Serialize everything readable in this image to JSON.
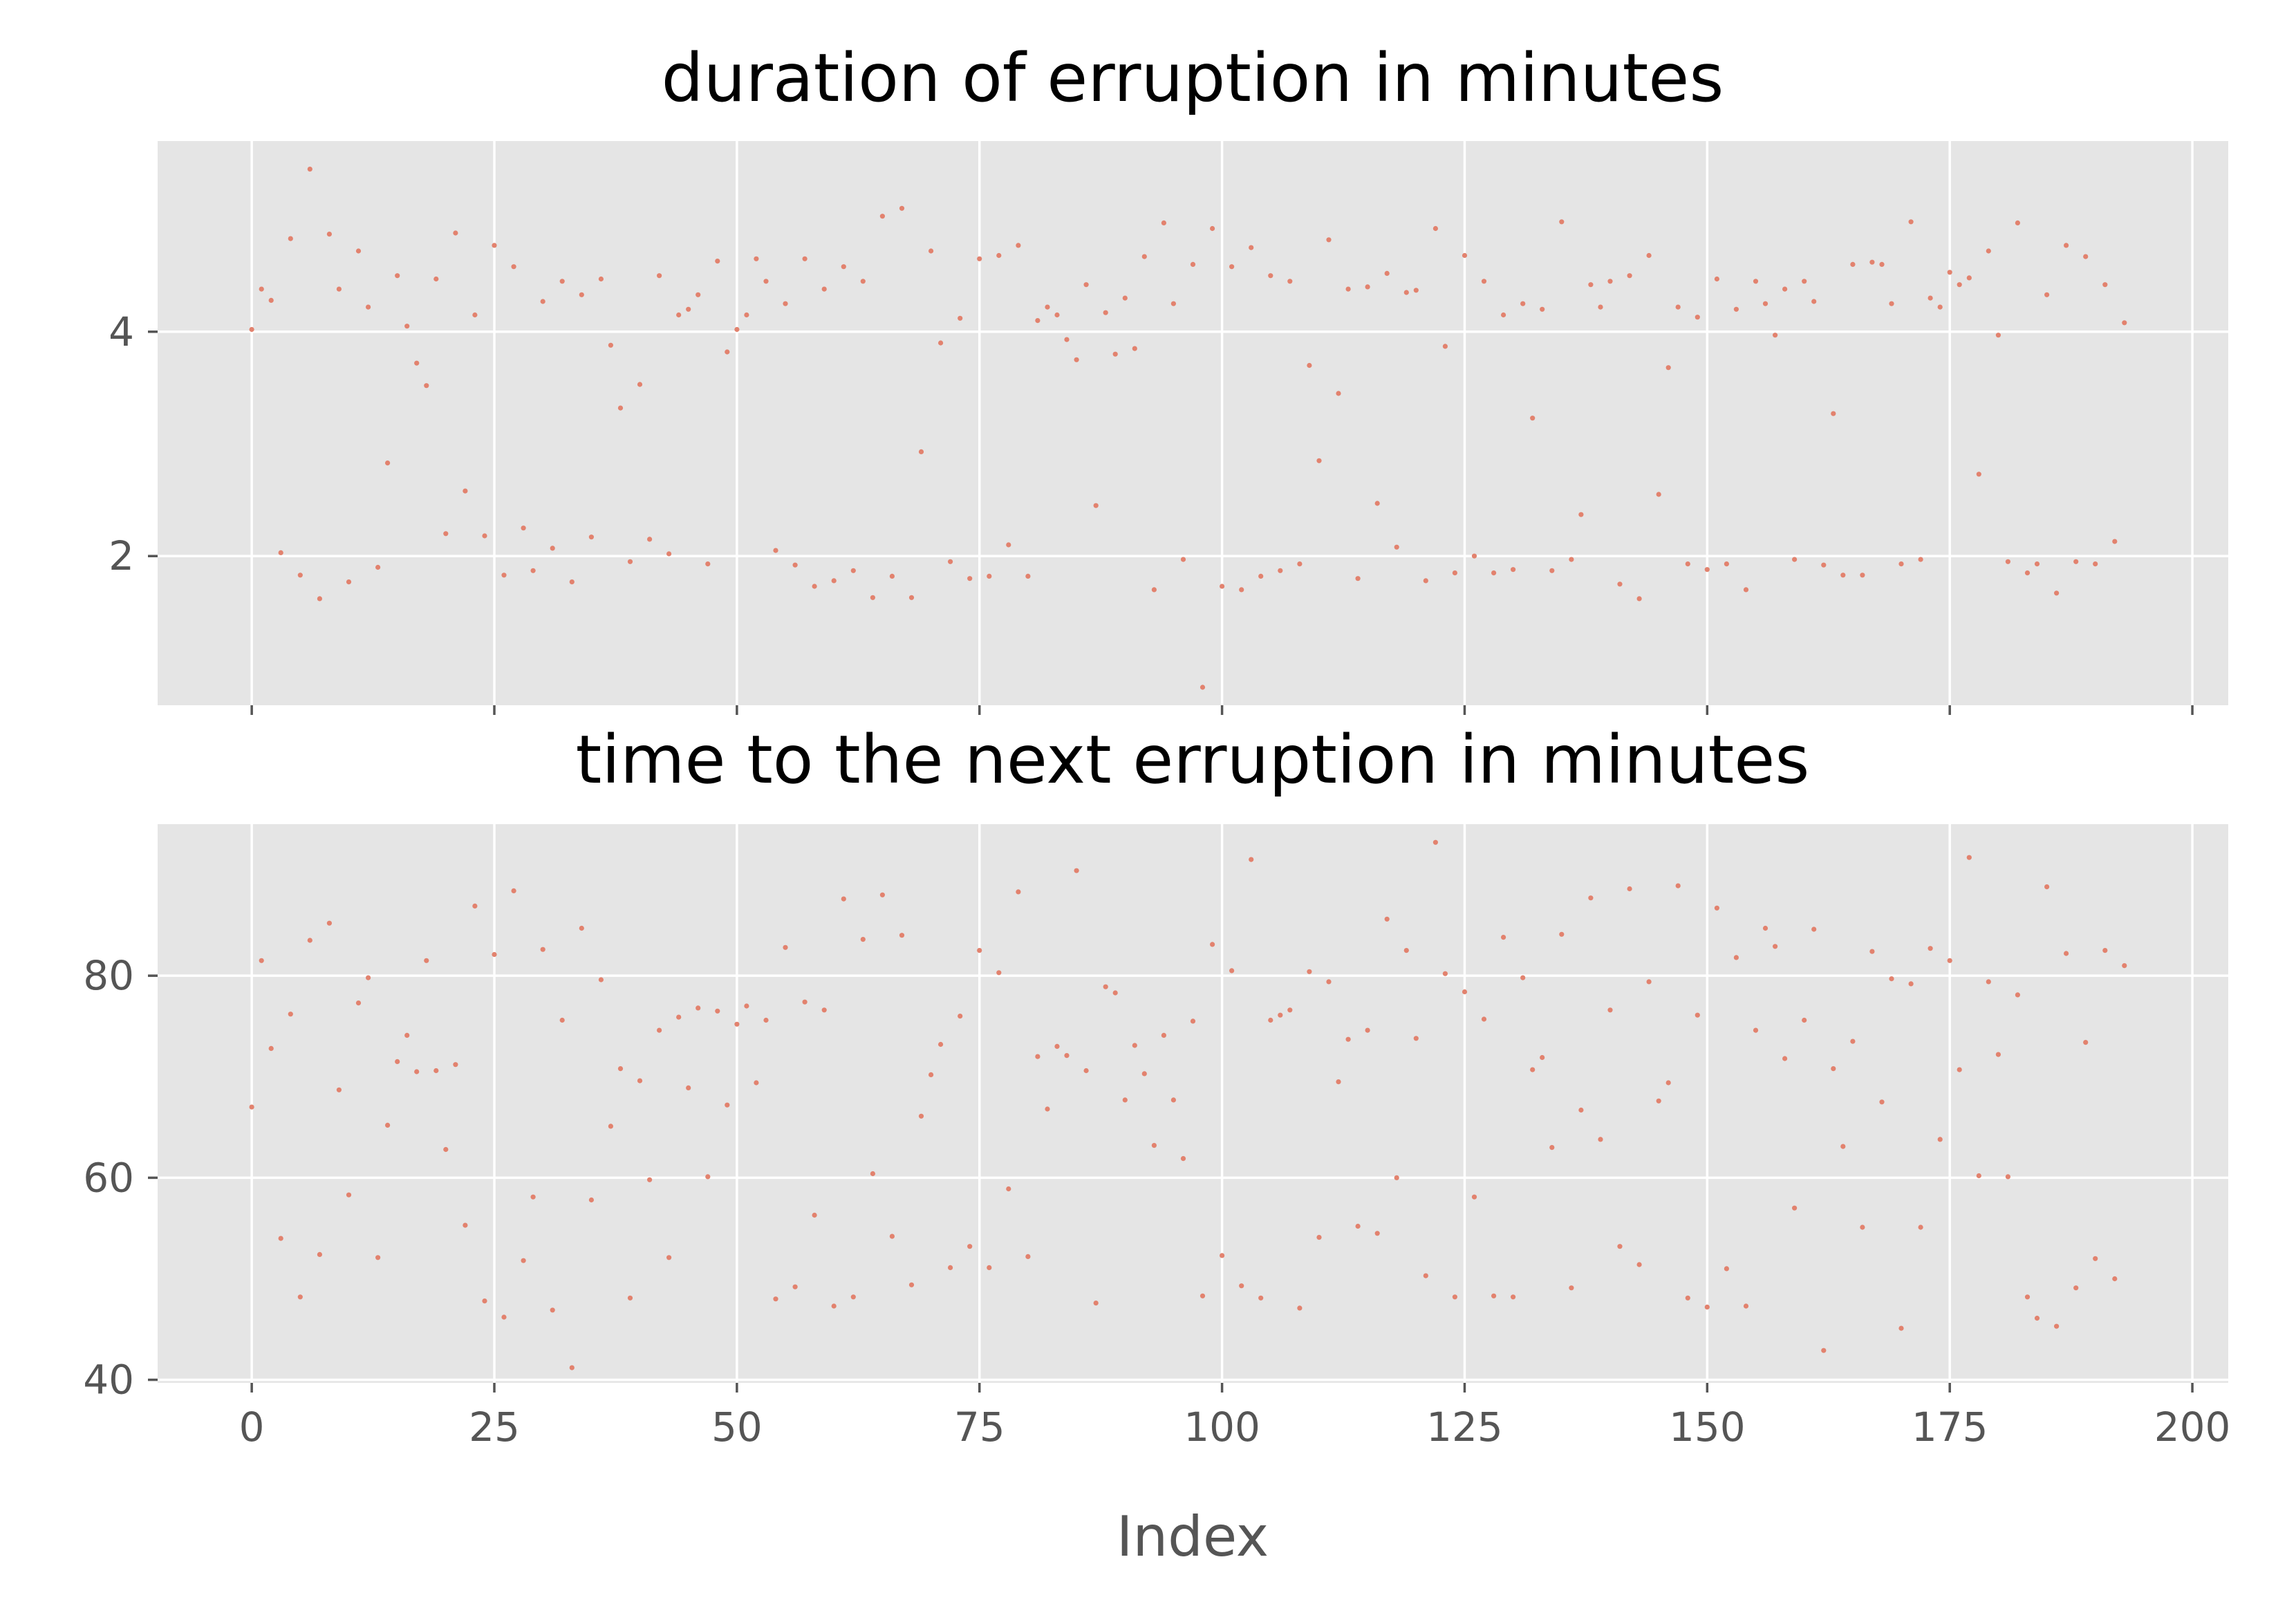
{
  "chart_data": [
    {
      "type": "scatter",
      "title": "duration of erruption in minutes",
      "xlabel": "",
      "ylabel": "",
      "xlim": [
        -9.7,
        203.7
      ],
      "ylim": [
        0.67,
        5.7
      ],
      "xticks": [
        0,
        25,
        50,
        75,
        100,
        125,
        150,
        175,
        200
      ],
      "yticks": [
        2,
        4
      ],
      "ytick_labels": [
        "2",
        "4"
      ],
      "grid": true,
      "marker_color": "#e2826e",
      "series": [
        {
          "x": [
            0,
            1,
            2,
            3,
            4,
            5,
            6,
            7,
            8,
            9,
            10,
            11,
            12,
            13,
            14,
            15,
            16,
            17,
            18,
            19,
            20,
            21,
            22,
            23,
            24,
            25,
            26,
            27,
            28,
            29,
            30,
            31,
            32,
            33,
            34,
            35,
            36,
            37,
            38,
            39,
            40,
            41,
            42,
            43,
            44,
            45,
            46,
            47,
            48,
            49,
            50,
            51,
            52,
            53,
            54,
            55,
            56,
            57,
            58,
            59,
            60,
            61,
            62,
            63,
            64,
            65,
            66,
            67,
            68,
            69,
            70,
            71,
            72,
            73,
            74,
            75,
            76,
            77,
            78,
            79,
            80,
            81,
            82,
            83,
            84,
            85,
            86,
            87,
            88,
            89,
            90,
            91,
            92,
            93,
            94,
            95,
            96,
            97,
            98,
            99,
            100,
            101,
            102,
            103,
            104,
            105,
            106,
            107,
            108,
            109,
            110,
            111,
            112,
            113,
            114,
            115,
            116,
            117,
            118,
            119,
            120,
            121,
            122,
            123,
            124,
            125,
            126,
            127,
            128,
            129,
            130,
            131,
            132,
            133,
            134,
            135,
            136,
            137,
            138,
            139,
            140,
            141,
            142,
            143,
            144,
            145,
            146,
            147,
            148,
            149,
            150,
            151,
            152,
            153,
            154,
            155,
            156,
            157,
            158,
            159,
            160,
            161,
            162,
            163,
            164,
            165,
            166,
            167,
            168,
            169,
            170,
            171,
            172,
            173,
            174,
            175,
            176,
            177,
            178,
            179,
            180,
            181,
            182,
            183,
            184,
            185,
            186,
            187,
            188,
            189,
            190,
            191,
            192,
            193
          ],
          "y": [
            4.02,
            4.38,
            4.28,
            2.03,
            4.83,
            1.83,
            5.45,
            1.62,
            4.87,
            4.38,
            1.77,
            4.72,
            4.22,
            1.9,
            2.83,
            4.5,
            4.05,
            3.72,
            3.52,
            4.47,
            2.2,
            4.88,
            2.58,
            4.15,
            2.18,
            4.77,
            1.83,
            4.58,
            2.25,
            1.87,
            4.27,
            2.07,
            4.45,
            1.77,
            4.33,
            2.17,
            4.47,
            3.88,
            3.32,
            1.95,
            3.53,
            2.15,
            4.5,
            2.02,
            4.15,
            4.2,
            4.33,
            1.93,
            4.63,
            3.82,
            4.02,
            4.15,
            4.65,
            4.45,
            2.05,
            4.25,
            1.92,
            4.65,
            1.73,
            4.38,
            1.78,
            4.58,
            1.87,
            4.45,
            1.63,
            5.03,
            1.82,
            5.1,
            1.63,
            2.93,
            4.72,
            3.9,
            1.95,
            4.12,
            1.8,
            4.65,
            1.82,
            4.68,
            2.1,
            4.77,
            1.82,
            4.1,
            4.22,
            4.15,
            3.93,
            3.75,
            4.42,
            2.45,
            4.17,
            3.8,
            4.3,
            3.85,
            4.67,
            1.7,
            4.97,
            4.25,
            1.97,
            4.6,
            0.83,
            4.92,
            1.73,
            4.58,
            1.7,
            4.75,
            1.82,
            4.5,
            1.87,
            4.45,
            1.93,
            3.7,
            2.85,
            4.82,
            3.45,
            4.38,
            1.8,
            4.4,
            2.47,
            4.52,
            2.08,
            4.35,
            4.37,
            1.78,
            4.92,
            3.87,
            1.85,
            4.68,
            2.0,
            4.45,
            1.85,
            4.15,
            1.88,
            4.25,
            3.23,
            4.2,
            1.87,
            4.98,
            1.97,
            2.37,
            4.42,
            4.22,
            4.45,
            1.75,
            4.5,
            1.62,
            4.68,
            2.55,
            3.68,
            4.22,
            1.93,
            4.13,
            1.88,
            4.47,
            1.93,
            4.2,
            1.7,
            4.45,
            4.25,
            3.97,
            4.38,
            1.97,
            4.45,
            4.27,
            1.92,
            3.27,
            1.83,
            4.6,
            1.83,
            4.62,
            4.6,
            4.25,
            1.93,
            4.98,
            1.97,
            4.3,
            4.22,
            4.53,
            4.42,
            4.48,
            2.73,
            4.72,
            3.97,
            1.95,
            4.97,
            1.85,
            1.93,
            4.33,
            1.67,
            4.77,
            1.95,
            4.67,
            1.93,
            4.42,
            2.13,
            4.08
          ]
        }
      ]
    },
    {
      "type": "scatter",
      "title": "time to the next erruption in minutes",
      "xlabel": "Index",
      "ylabel": "",
      "xlim": [
        -9.7,
        203.7
      ],
      "ylim": [
        39.7,
        95.0
      ],
      "xticks": [
        0,
        25,
        50,
        75,
        100,
        125,
        150,
        175,
        200
      ],
      "xtick_labels": [
        "0",
        "25",
        "50",
        "75",
        "100",
        "125",
        "150",
        "175",
        "200"
      ],
      "yticks": [
        40,
        60,
        80
      ],
      "ytick_labels": [
        "40",
        "60",
        "80"
      ],
      "grid": true,
      "marker_color": "#e2826e",
      "series": [
        {
          "x": [
            0,
            1,
            2,
            3,
            4,
            5,
            6,
            7,
            8,
            9,
            10,
            11,
            12,
            13,
            14,
            15,
            16,
            17,
            18,
            19,
            20,
            21,
            22,
            23,
            24,
            25,
            26,
            27,
            28,
            29,
            30,
            31,
            32,
            33,
            34,
            35,
            36,
            37,
            38,
            39,
            40,
            41,
            42,
            43,
            44,
            45,
            46,
            47,
            48,
            49,
            50,
            51,
            52,
            53,
            54,
            55,
            56,
            57,
            58,
            59,
            60,
            61,
            62,
            63,
            64,
            65,
            66,
            67,
            68,
            69,
            70,
            71,
            72,
            73,
            74,
            75,
            76,
            77,
            78,
            79,
            80,
            81,
            82,
            83,
            84,
            85,
            86,
            87,
            88,
            89,
            90,
            91,
            92,
            93,
            94,
            95,
            96,
            97,
            98,
            99,
            100,
            101,
            102,
            103,
            104,
            105,
            106,
            107,
            108,
            109,
            110,
            111,
            112,
            113,
            114,
            115,
            116,
            117,
            118,
            119,
            120,
            121,
            122,
            123,
            124,
            125,
            126,
            127,
            128,
            129,
            130,
            131,
            132,
            133,
            134,
            135,
            136,
            137,
            138,
            139,
            140,
            141,
            142,
            143,
            144,
            145,
            146,
            147,
            148,
            149,
            150,
            151,
            152,
            153,
            154,
            155,
            156,
            157,
            158,
            159,
            160,
            161,
            162,
            163,
            164,
            165,
            166,
            167,
            168,
            169,
            170,
            171,
            172,
            173,
            174,
            175,
            176,
            177,
            178,
            179,
            180,
            181,
            182,
            183,
            184,
            185,
            186,
            187,
            188,
            189,
            190,
            191,
            192,
            193
          ],
          "y": [
            67,
            81.5,
            72.8,
            54,
            76.2,
            48.2,
            83.5,
            52.4,
            85.2,
            68.7,
            58.3,
            77.3,
            79.8,
            52.1,
            65.2,
            71.5,
            74.1,
            70.5,
            81.5,
            70.6,
            62.8,
            71.2,
            55.3,
            86.9,
            47.8,
            82.1,
            46.2,
            88.4,
            51.8,
            58.1,
            82.6,
            46.9,
            75.6,
            41.2,
            84.7,
            57.8,
            79.6,
            65.1,
            70.8,
            48.1,
            69.6,
            59.8,
            74.6,
            52.1,
            75.9,
            68.9,
            76.8,
            60.1,
            76.5,
            67.2,
            75.2,
            77,
            69.4,
            75.6,
            48,
            82.8,
            49.2,
            77.4,
            56.3,
            76.6,
            47.3,
            87.6,
            48.2,
            83.6,
            60.4,
            88,
            54.2,
            84,
            49.4,
            66.1,
            70.2,
            73.2,
            51.1,
            76,
            53.2,
            82.5,
            51.1,
            80.3,
            58.9,
            88.3,
            52.2,
            72,
            66.8,
            73,
            72.1,
            90.4,
            70.6,
            47.6,
            78.9,
            78.3,
            67.7,
            73.1,
            70.3,
            63.2,
            74.1,
            67.7,
            61.9,
            75.5,
            48.3,
            83.1,
            52.3,
            80.5,
            49.3,
            91.5,
            48.1,
            75.6,
            76.1,
            76.6,
            47.1,
            80.4,
            54.1,
            79.4,
            69.5,
            73.7,
            55.2,
            74.6,
            54.5,
            85.6,
            60,
            82.5,
            73.8,
            50.3,
            93.2,
            80.2,
            48.2,
            78.4,
            58.1,
            75.7,
            48.3,
            83.8,
            48.2,
            79.8,
            70.7,
            71.9,
            63,
            84.1,
            49.1,
            66.7,
            87.7,
            63.8,
            76.6,
            53.2,
            88.6,
            51.4,
            79.4,
            67.6,
            69.4,
            88.9,
            48.1,
            76.1,
            47.2,
            86.7,
            51,
            81.8,
            47.3,
            74.6,
            84.7,
            82.9,
            71.8,
            57,
            75.6,
            84.6,
            42.9,
            70.8,
            63.1,
            73.5,
            55.1,
            82.4,
            67.5,
            79.7,
            45.1,
            79.2,
            55.1,
            82.7,
            63.8,
            81.5,
            70.7,
            91.7,
            60.2,
            79.4,
            72.2,
            60.1,
            78.1,
            48.2,
            46.1,
            88.8,
            45.3,
            82.2,
            49.1,
            73.4,
            52,
            82.5,
            50,
            81
          ]
        }
      ]
    }
  ]
}
